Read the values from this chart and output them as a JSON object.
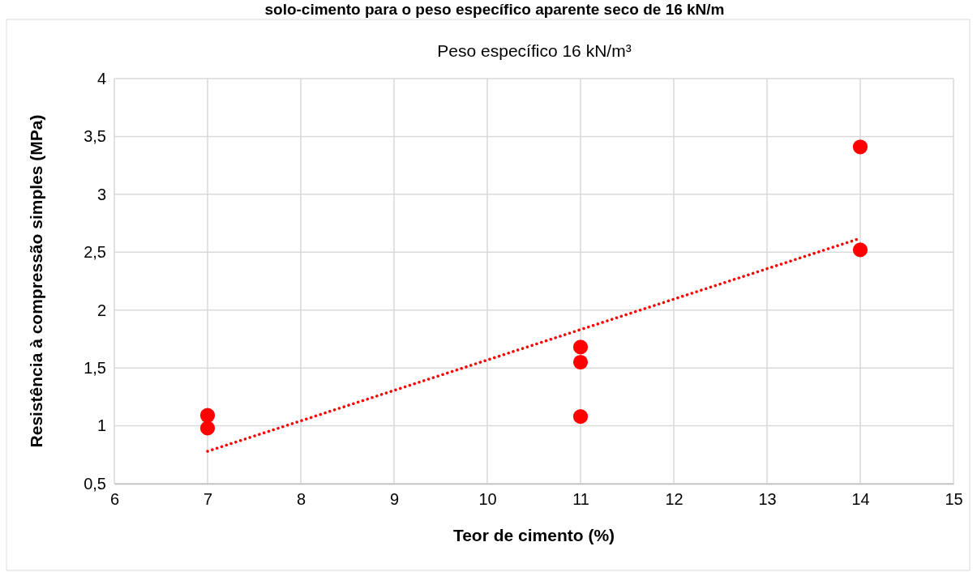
{
  "chart_data": {
    "type": "scatter",
    "title": "Peso específico 16 kN/m³",
    "xlabel": "Teor de cimento (%)",
    "ylabel": "Resistência à compressão simples  (MPa)",
    "annotations": [
      "solo-cimento para o peso específico aparente seco de 16 kN/m"
    ],
    "series": [
      {
        "color": "#ff0000",
        "x": [
          7,
          7,
          11,
          11,
          11,
          14,
          14
        ],
        "values": [
          1.09,
          0.98,
          1.68,
          1.55,
          1.08,
          3.41,
          2.52
        ],
        "marker": "circle"
      },
      {
        "type": "line",
        "color": "#ff0000",
        "x": [
          7,
          14
        ],
        "values": [
          0.78,
          2.62
        ],
        "line_style": "dotted",
        "marker": "none"
      }
    ],
    "xlim": [
      6,
      15
    ],
    "xticks": [
      6,
      7,
      8,
      9,
      10,
      11,
      12,
      13,
      14,
      15
    ],
    "ylim": [
      0.5,
      4
    ],
    "yticks": [
      {
        "value": 0.5,
        "label": "0,5"
      },
      1,
      {
        "value": 1.5,
        "label": "1,5"
      },
      2,
      {
        "value": 2.5,
        "label": "2,5"
      },
      3,
      {
        "value": 3.5,
        "label": "3,5"
      },
      4
    ],
    "grid": true
  }
}
